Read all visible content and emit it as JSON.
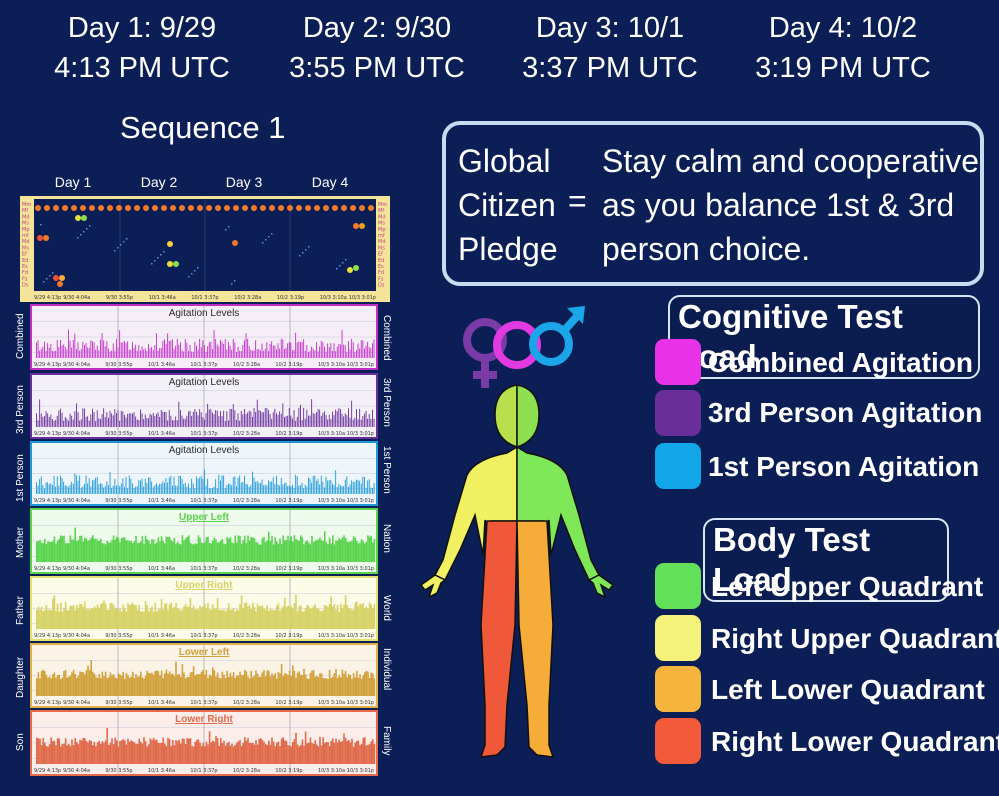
{
  "days": [
    {
      "label": "Day 1:  9/29",
      "time": "4:13 PM UTC"
    },
    {
      "label": "Day 2:  9/30",
      "time": "3:55 PM UTC"
    },
    {
      "label": "Day 3:  10/1",
      "time": "3:37 PM UTC"
    },
    {
      "label": "Day 4:  10/2",
      "time": "3:19 PM UTC"
    }
  ],
  "sequence_title": "Sequence 1",
  "pledge": {
    "label_lines": [
      "Global",
      "Citizen",
      "Pledge"
    ],
    "equals": "=",
    "text_lines": [
      "Stay calm and cooperative",
      "as you balance 1st & 3rd",
      "person choice."
    ]
  },
  "cognitive": {
    "title": "Cognitive Test Load",
    "items": [
      {
        "label": "Combined Agitation",
        "color": "#e832e8"
      },
      {
        "label": "3rd Person Agitation",
        "color": "#6a2e9a"
      },
      {
        "label": "1st Person Agitation",
        "color": "#12a6e8"
      }
    ]
  },
  "body": {
    "title": "Body Test Load",
    "items": [
      {
        "label": "Left Upper Quadrant",
        "color": "#62e05a"
      },
      {
        "label": "Right Upper Quadrant",
        "color": "#f4f27a"
      },
      {
        "label": "Left Lower Quadrant",
        "color": "#f7b43c"
      },
      {
        "label": "Right Lower Quadrant",
        "color": "#f25a3a"
      }
    ]
  },
  "top_chart": {
    "day_labels": [
      "Day 1",
      "Day 2",
      "Day 3",
      "Day 4"
    ],
    "row_labels": [
      "Mm",
      "Mf",
      "Md",
      "Ms",
      "Mp",
      "mf",
      "Md",
      "Ms",
      "Ef",
      "Ed",
      "Es",
      "Fd",
      "Fs",
      "Ds"
    ]
  },
  "tick_labels": [
    "9/29 4:13p",
    "9/30 4:04a",
    "9/30 3:55p",
    "10/1 3:46a",
    "10/1 3:37p",
    "10/2 3:28a",
    "10/2 3:19p",
    "10/3 3:10a",
    "10/3 3:01p"
  ],
  "panels": [
    {
      "title": "Agitation Levels",
      "left": "Combined",
      "right": "Combined",
      "color": "#c02ec8",
      "border": "#c02ec8",
      "bg": "#f6eef6"
    },
    {
      "title": "Agitation Levels",
      "left": "3rd Person",
      "right": "3rd Person",
      "color": "#6a2e9a",
      "border": "#6a2e9a",
      "bg": "#f4f0f8"
    },
    {
      "title": "Agitation Levels",
      "left": "1st Person",
      "right": "1st Person",
      "color": "#1a98d8",
      "border": "#1a98d8",
      "bg": "#eef6fc"
    },
    {
      "title": "Upper Left",
      "left": "Mother",
      "right": "Nation",
      "color": "#5ad44e",
      "border": "#5ad44e",
      "bg": "#eefaec"
    },
    {
      "title": "Upper Right",
      "left": "Father",
      "right": "World",
      "color": "#d6d266",
      "border": "#e4e070",
      "bg": "#fbfbe8"
    },
    {
      "title": "Lower Left",
      "left": "Daughter",
      "right": "Individual",
      "color": "#d2a23c",
      "border": "#e0b04a",
      "bg": "#fbf4e6"
    },
    {
      "title": "Lower Right",
      "left": "Son",
      "right": "Family",
      "color": "#e06a4a",
      "border": "#e86a4a",
      "bg": "#fbeeea"
    }
  ],
  "colors": {
    "bg": "#0b1f56"
  }
}
